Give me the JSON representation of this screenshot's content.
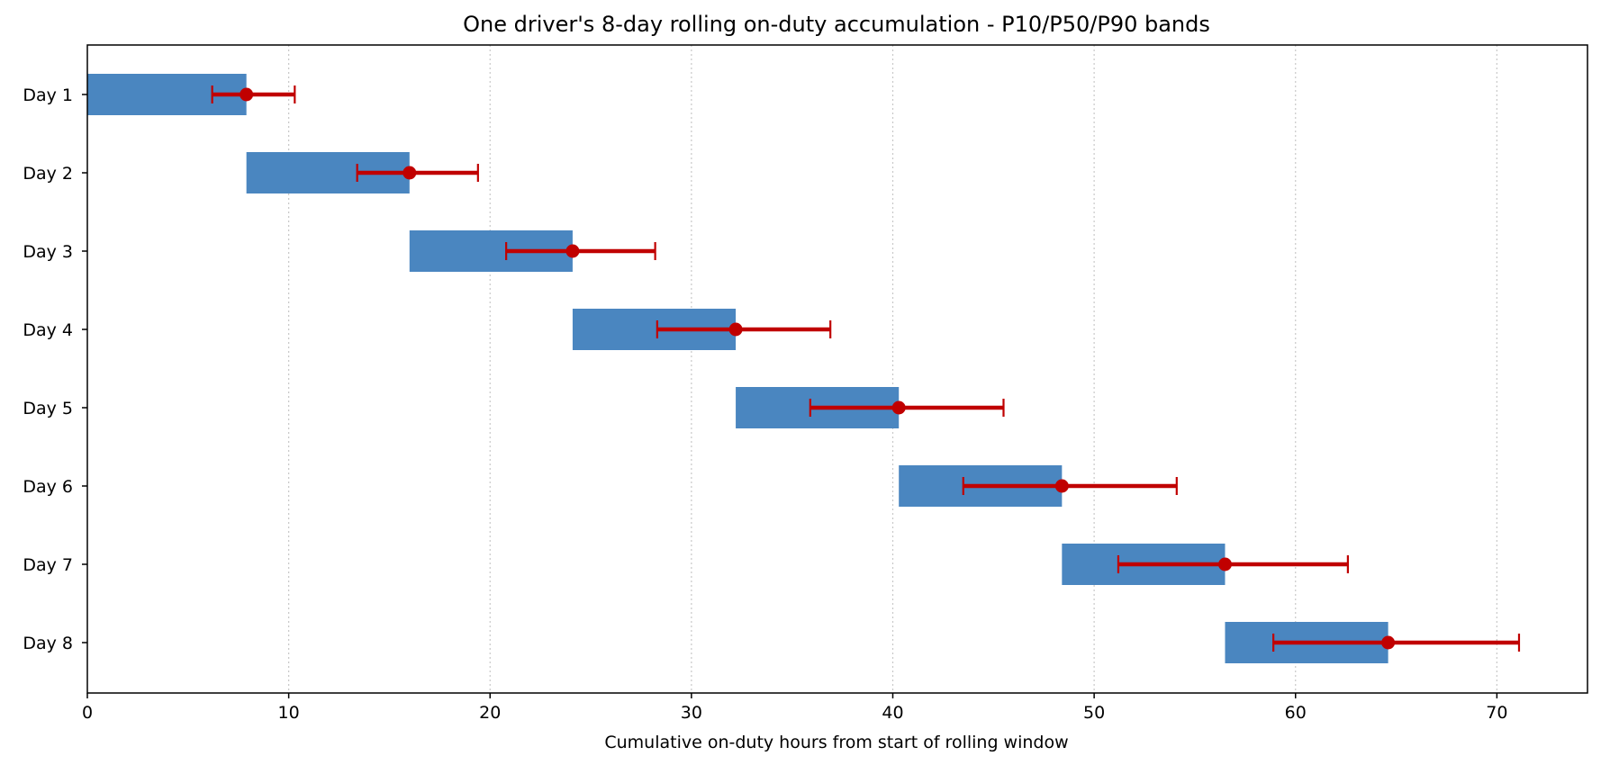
{
  "chart_data": {
    "type": "bar",
    "title": "One driver's 8-day rolling on-duty accumulation - P10/P50/P90 bands",
    "xlabel": "Cumulative on-duty hours from start of rolling window",
    "ylabel": "",
    "xlim": [
      0,
      74.5
    ],
    "xticks": [
      0,
      10,
      20,
      30,
      40,
      50,
      60,
      70
    ],
    "grid": "x-dotted",
    "colors": {
      "bar": "#4a86c0",
      "band": "#c00000"
    },
    "categories": [
      "Day 1",
      "Day 2",
      "Day 3",
      "Day 4",
      "Day 5",
      "Day 6",
      "Day 7",
      "Day 8"
    ],
    "bars": [
      {
        "start": 0.0,
        "end": 7.9
      },
      {
        "start": 7.9,
        "end": 16.0
      },
      {
        "start": 16.0,
        "end": 24.1
      },
      {
        "start": 24.1,
        "end": 32.2
      },
      {
        "start": 32.2,
        "end": 40.3
      },
      {
        "start": 40.3,
        "end": 48.4
      },
      {
        "start": 48.4,
        "end": 56.5
      },
      {
        "start": 56.5,
        "end": 64.6
      }
    ],
    "bands": [
      {
        "p10": 6.2,
        "p50": 7.9,
        "p90": 10.3
      },
      {
        "p10": 13.4,
        "p50": 16.0,
        "p90": 19.4
      },
      {
        "p10": 20.8,
        "p50": 24.1,
        "p90": 28.2
      },
      {
        "p10": 28.3,
        "p50": 32.2,
        "p90": 36.9
      },
      {
        "p10": 35.9,
        "p50": 40.3,
        "p90": 45.5
      },
      {
        "p10": 43.5,
        "p50": 48.4,
        "p90": 54.1
      },
      {
        "p10": 51.2,
        "p50": 56.5,
        "p90": 62.6
      },
      {
        "p10": 58.9,
        "p50": 64.6,
        "p90": 71.1
      }
    ]
  }
}
